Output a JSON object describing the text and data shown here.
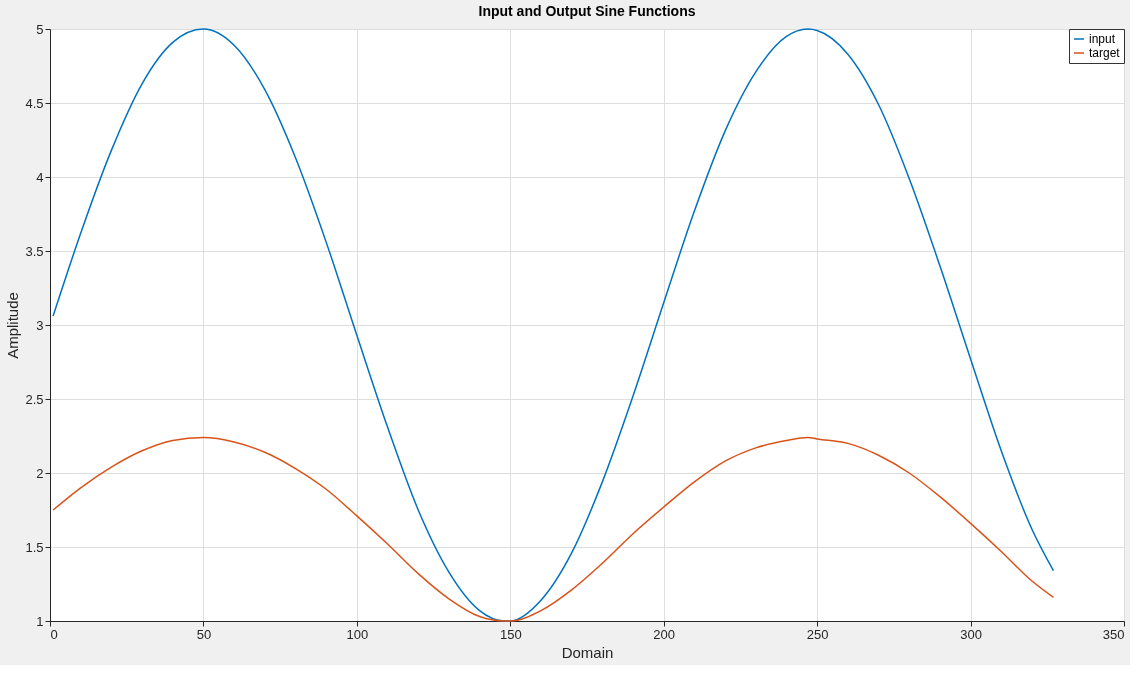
{
  "chart_data": {
    "type": "line",
    "title": "Input and Output Sine Functions",
    "xlabel": "Domain",
    "ylabel": "Amplitude",
    "x": [
      1,
      10,
      20,
      30,
      40,
      50,
      60,
      70,
      80,
      90,
      100,
      110,
      120,
      130,
      140,
      148,
      150,
      160,
      170,
      180,
      190,
      200,
      210,
      220,
      230,
      240,
      247,
      250,
      260,
      270,
      280,
      290,
      300,
      310,
      320,
      327
    ],
    "series": [
      {
        "name": "input",
        "color": "#0072bd",
        "values": [
          3.06,
          3.62,
          4.18,
          4.63,
          4.91,
          5.0,
          4.89,
          4.59,
          4.13,
          3.56,
          2.93,
          2.31,
          1.75,
          1.33,
          1.07,
          1.0,
          1.0,
          1.14,
          1.46,
          1.94,
          2.52,
          3.15,
          3.77,
          4.31,
          4.71,
          4.95,
          5.0,
          4.99,
          4.83,
          4.49,
          3.99,
          3.4,
          2.77,
          2.15,
          1.62,
          1.34
        ]
      },
      {
        "name": "target",
        "color": "#d95319",
        "values": [
          1.75,
          1.9,
          2.04,
          2.15,
          2.22,
          2.24,
          2.21,
          2.14,
          2.03,
          1.89,
          1.71,
          1.52,
          1.32,
          1.15,
          1.03,
          1.0,
          1.0,
          1.07,
          1.21,
          1.39,
          1.59,
          1.77,
          1.94,
          2.08,
          2.17,
          2.22,
          2.24,
          2.23,
          2.2,
          2.12,
          2.0,
          1.84,
          1.66,
          1.47,
          1.27,
          1.16
        ]
      }
    ],
    "xlim": [
      0,
      350
    ],
    "xticks": [
      0,
      50,
      100,
      150,
      200,
      250,
      300,
      350
    ],
    "ylim": [
      1,
      5
    ],
    "yticks": [
      1,
      1.5,
      2,
      2.5,
      3,
      3.5,
      4,
      4.5,
      5
    ],
    "grid": true,
    "legend": "top right",
    "marker": "none",
    "line_style": "solid"
  }
}
